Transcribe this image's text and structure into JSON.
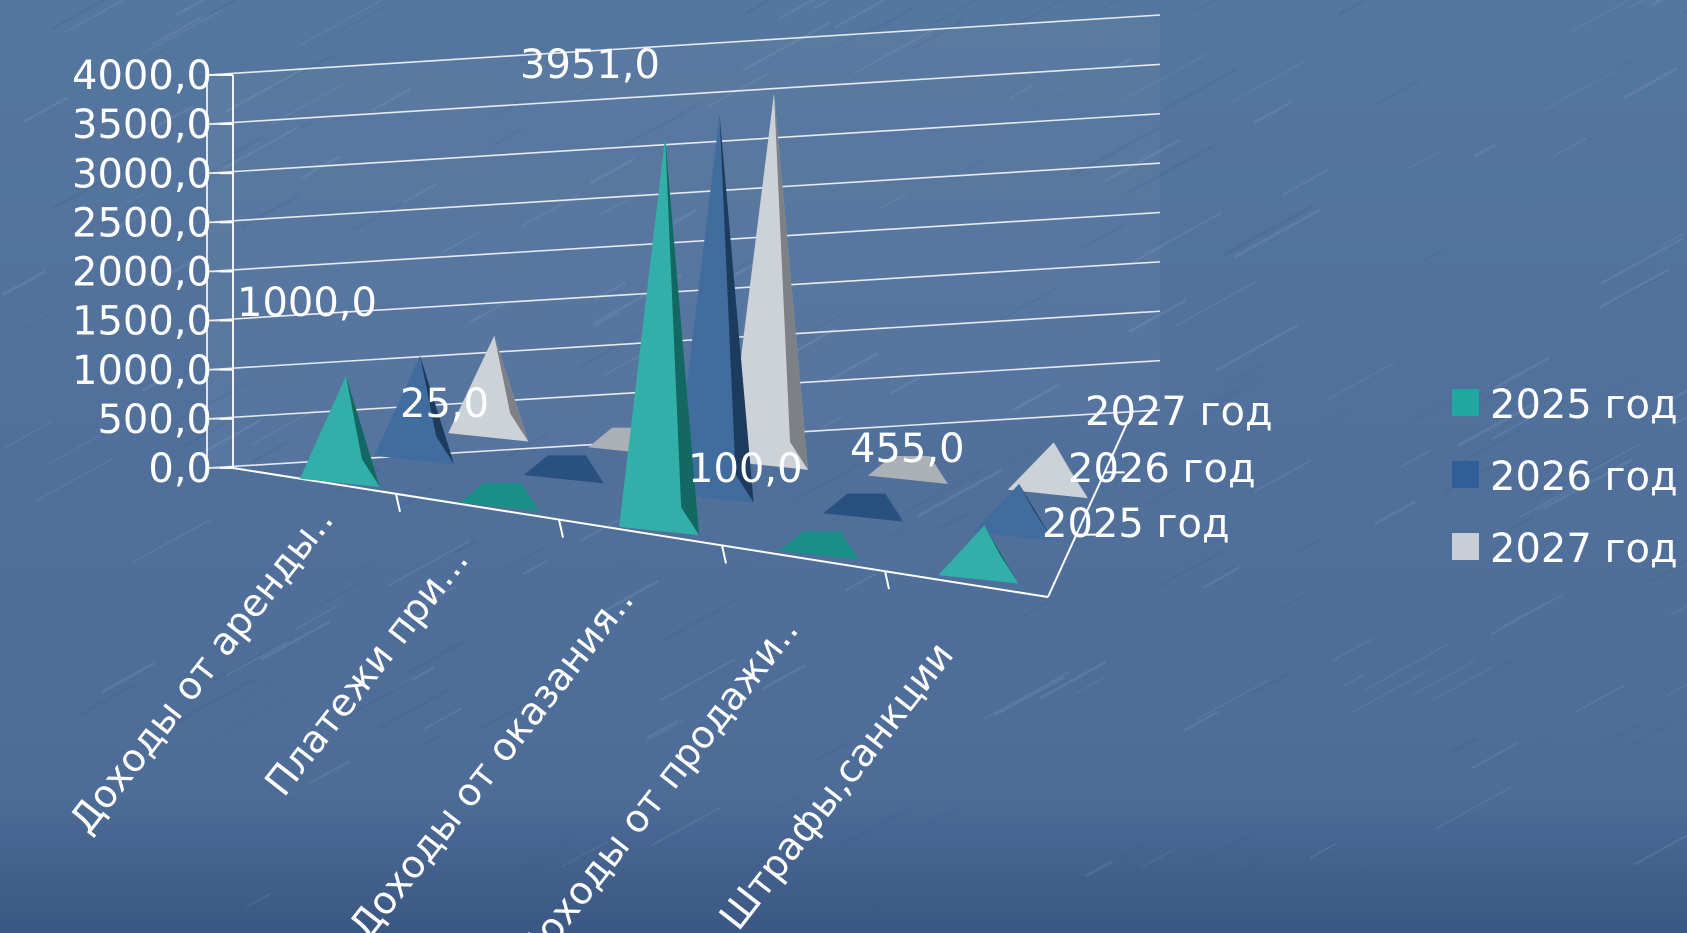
{
  "chart_data": {
    "type": "bar",
    "style": "3d-pyramid",
    "title": "",
    "xlabel": "",
    "ylabel": "",
    "ylim": [
      0,
      4000
    ],
    "y_ticks": [
      "0,0",
      "500,0",
      "1000,0",
      "1500,0",
      "2000,0",
      "2500,0",
      "3000,0",
      "3500,0",
      "4000,0"
    ],
    "categories": [
      "Доходы от аренды..",
      "Платежи при...",
      "Доходы от оказания..",
      "Доходы от продажи..",
      "Штрафы,санкции"
    ],
    "series": [
      {
        "name": "2025 год",
        "color": "#1fa8a0",
        "values": [
          1000,
          25,
          3951,
          100,
          455
        ]
      },
      {
        "name": "2026 год",
        "color": "#2f5f96",
        "values": [
          1000,
          25,
          3951,
          100,
          455
        ]
      },
      {
        "name": "2027 год",
        "color": "#c9ced6",
        "values": [
          1000,
          25,
          3951,
          100,
          455
        ]
      }
    ],
    "data_labels": [
      "1000,0",
      "25,0",
      "3951,0",
      "100,0",
      "455,0"
    ],
    "depth_labels": [
      "2027 год",
      "2026 год",
      "2025 год"
    ],
    "legend": {
      "position": "right",
      "items": [
        "2025 год",
        "2026 год",
        "2027 год"
      ]
    },
    "grid": true,
    "background": "#4f6e9a"
  }
}
